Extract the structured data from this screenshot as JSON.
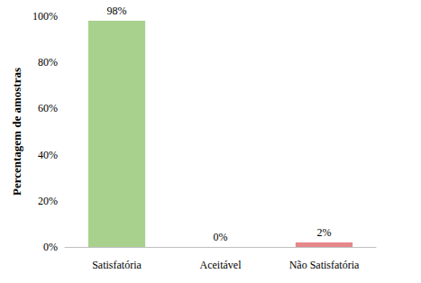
{
  "chart_data": {
    "type": "bar",
    "y_label": "Percentagem de amostras",
    "categories": [
      "Satisfatória",
      "Aceitável",
      "Não Satisfatória"
    ],
    "values": [
      98,
      0,
      2
    ],
    "value_labels": [
      "98%",
      "0%",
      "2%"
    ],
    "colors": [
      "#a9d18e",
      "#a9d18e",
      "#e6878a"
    ],
    "ylim": [
      0,
      100
    ],
    "yticks": [
      {
        "value": 0,
        "label": "0%"
      },
      {
        "value": 20,
        "label": "20%"
      },
      {
        "value": 40,
        "label": "40%"
      },
      {
        "value": 60,
        "label": "60%"
      },
      {
        "value": 80,
        "label": "80%"
      },
      {
        "value": 100,
        "label": "100%"
      }
    ],
    "grid": false,
    "data_labels": true
  }
}
